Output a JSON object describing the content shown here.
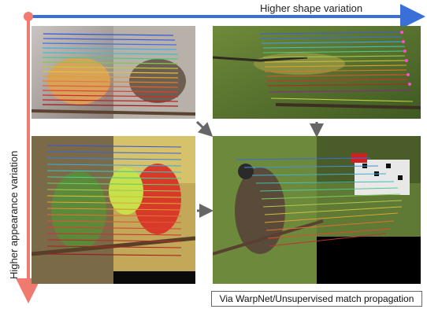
{
  "figure": {
    "axis_x_label": "Higher shape variation",
    "axis_y_label": "Higher appearance variation",
    "caption": "Via WarpNet/Unsupervised match propagation",
    "colors": {
      "x_axis_arrow": "#3b6fd8",
      "y_axis_arrow": "#f07a70",
      "origin_dot": "#f07a70",
      "flow_arrow": "#666666"
    },
    "panels": [
      {
        "id": "top-left",
        "description": "bird pair with dense rainbow correspondence lines"
      },
      {
        "id": "top-right",
        "description": "bird on branch with correspondence keypoints"
      },
      {
        "id": "bottom-left",
        "description": "colorful bird pair with dense correspondence lines"
      },
      {
        "id": "bottom-right",
        "description": "woodpecker and bird pair with sparse correspondence lines"
      }
    ]
  }
}
